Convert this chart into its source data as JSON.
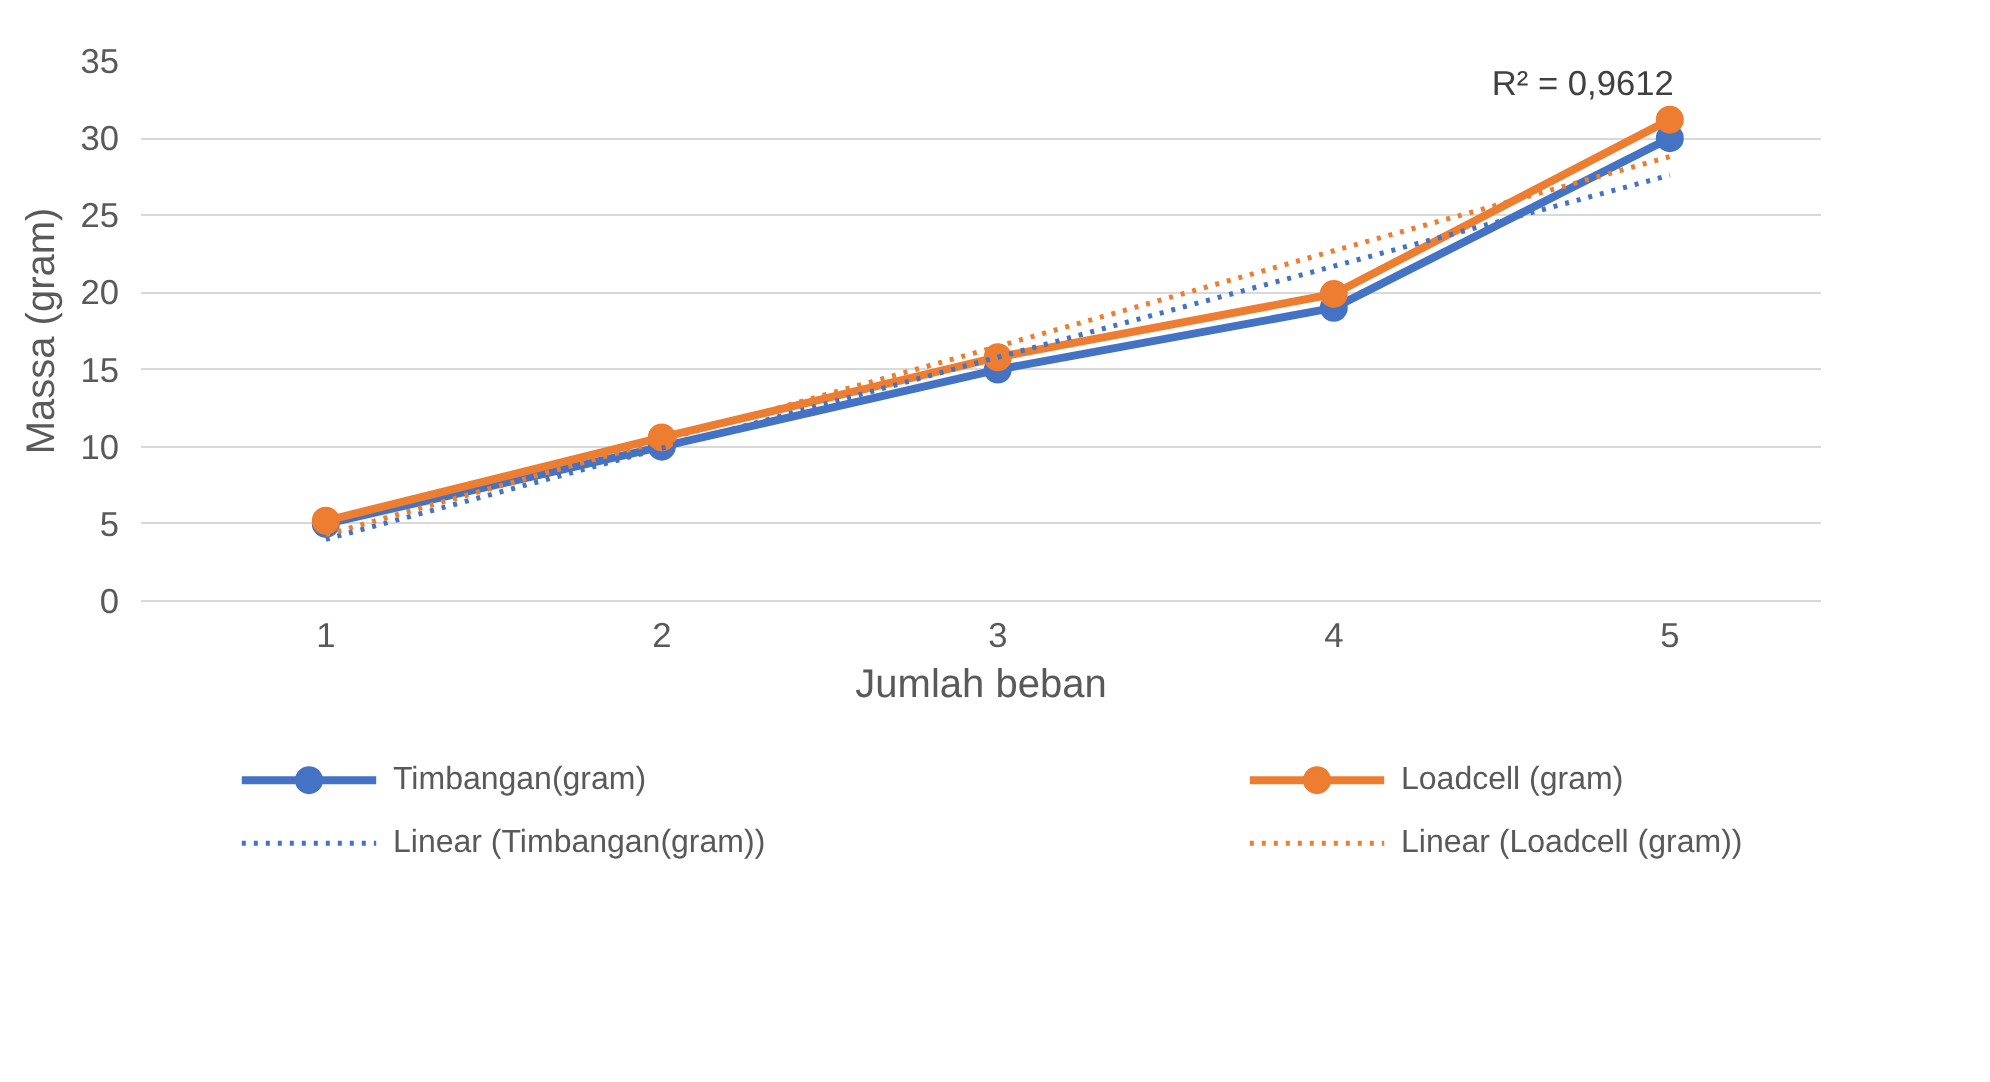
{
  "chart_data": {
    "type": "line",
    "xlabel": "Jumlah beban",
    "ylabel": "Massa (gram)",
    "categories": [
      "1",
      "2",
      "3",
      "4",
      "5"
    ],
    "series": [
      {
        "name": "Timbangan(gram)",
        "color": "#4472c4",
        "values": [
          5,
          10,
          15,
          19,
          30
        ],
        "marker": "circle",
        "line_style": "solid"
      },
      {
        "name": "Loadcell (gram)",
        "color": "#ed7d31",
        "values": [
          5.2,
          10.6,
          15.8,
          19.9,
          31.2
        ],
        "marker": "circle",
        "line_style": "solid"
      },
      {
        "name": "Linear (Timbangan(gram))",
        "color": "#4472c4",
        "values": [
          4.0,
          9.9,
          15.8,
          21.7,
          27.6
        ],
        "marker": "none",
        "line_style": "dotted"
      },
      {
        "name": "Linear (Loadcell (gram))",
        "color": "#ed7d31",
        "values": [
          4.3,
          10.4,
          16.5,
          22.7,
          28.8
        ],
        "marker": "none",
        "line_style": "dotted"
      }
    ],
    "annotations": [
      "R² = 0,9612"
    ],
    "ylim": [
      0,
      35
    ],
    "yticks": [
      0,
      5,
      10,
      15,
      20,
      25,
      30,
      35
    ],
    "grid": "y",
    "legend": "bottom"
  }
}
